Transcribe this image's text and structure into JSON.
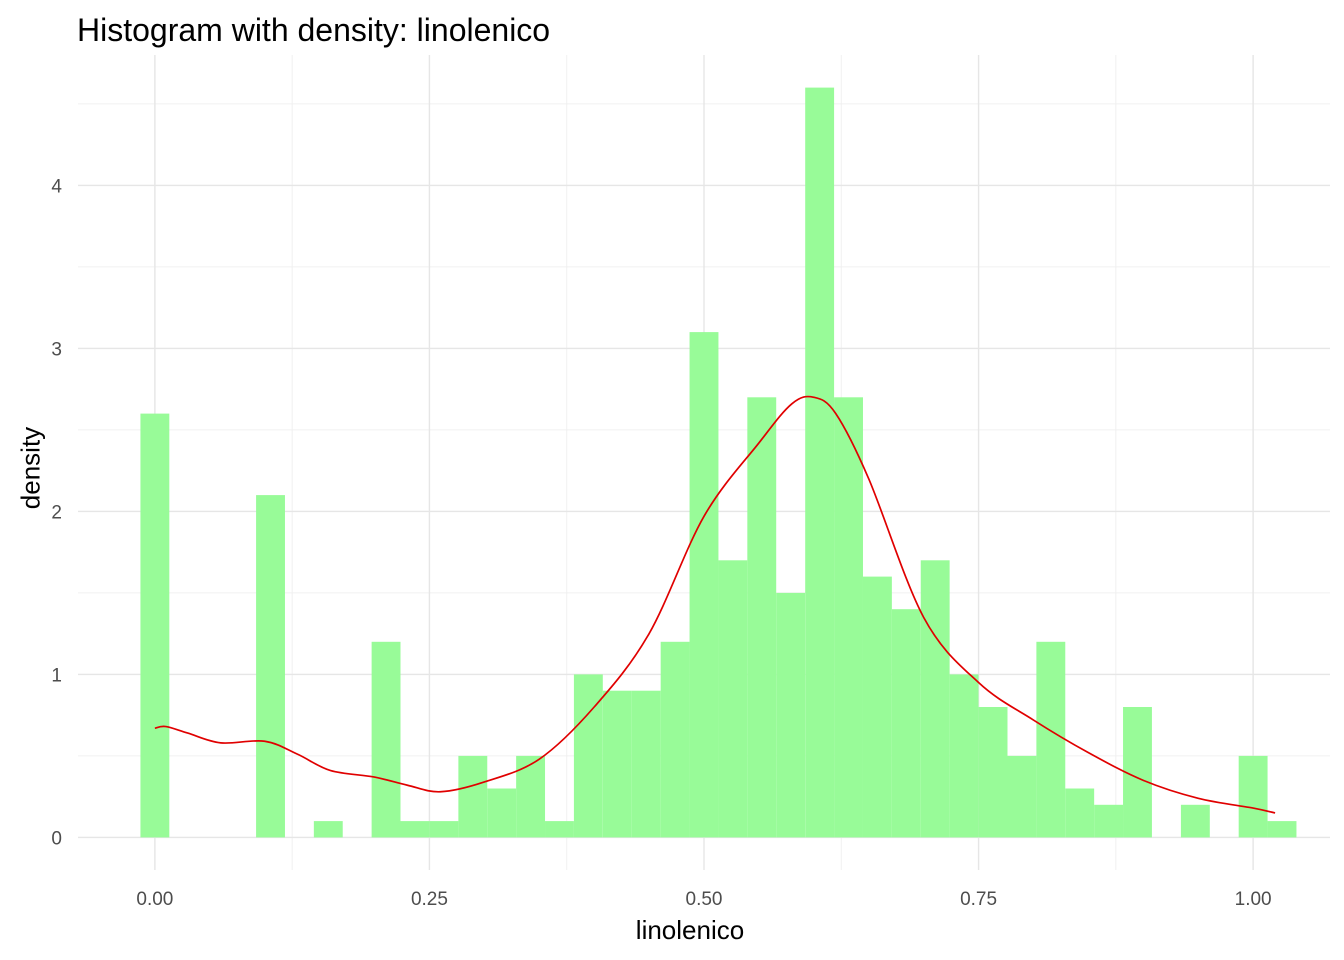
{
  "chart_data": {
    "type": "bar",
    "title": "Histogram with density: linolenico",
    "xlabel": "linolenico",
    "ylabel": "density",
    "xlim": [
      -0.07,
      1.07
    ],
    "ylim": [
      -0.2,
      4.8
    ],
    "x_ticks": [
      0.0,
      0.25,
      0.5,
      0.75,
      1.0
    ],
    "x_tick_labels": [
      "0.00",
      "0.25",
      "0.50",
      "0.75",
      "1.00"
    ],
    "y_ticks": [
      0,
      1,
      2,
      3,
      4
    ],
    "y_tick_labels": [
      "0",
      "1",
      "2",
      "3",
      "4"
    ],
    "grid": true,
    "bin_width": 0.0263,
    "bins": {
      "x": [
        0.0,
        0.0263,
        0.0526,
        0.0789,
        0.1053,
        0.1316,
        0.1579,
        0.1842,
        0.2105,
        0.2368,
        0.2632,
        0.2895,
        0.3158,
        0.3421,
        0.3684,
        0.3947,
        0.4211,
        0.4474,
        0.4737,
        0.5,
        0.5263,
        0.5526,
        0.5789,
        0.6053,
        0.6316,
        0.6579,
        0.6842,
        0.7105,
        0.7368,
        0.7632,
        0.7895,
        0.8158,
        0.8421,
        0.8684,
        0.8947,
        0.9211,
        0.9474,
        0.9737,
        1.0,
        1.0263
      ],
      "density": [
        2.6,
        0,
        0,
        0,
        2.1,
        0,
        0.1,
        0,
        1.2,
        0.1,
        0.1,
        0.5,
        0.3,
        0.5,
        0.1,
        1.0,
        0.9,
        0.9,
        1.2,
        3.1,
        1.7,
        2.7,
        1.5,
        4.6,
        2.7,
        1.6,
        1.4,
        1.7,
        1.0,
        0.8,
        0.5,
        1.2,
        0.3,
        0.2,
        0.8,
        0,
        0.2,
        0,
        0.5,
        0.1
      ]
    },
    "bar_color": "#98fb98",
    "density_curve": {
      "color": "#e00000",
      "x": [
        0.0,
        0.01,
        0.03,
        0.06,
        0.1,
        0.13,
        0.16,
        0.2,
        0.23,
        0.26,
        0.3,
        0.35,
        0.4,
        0.45,
        0.5,
        0.55,
        0.58,
        0.6,
        0.62,
        0.65,
        0.7,
        0.75,
        0.8,
        0.85,
        0.9,
        0.95,
        1.0,
        1.02
      ],
      "y": [
        0.67,
        0.68,
        0.64,
        0.58,
        0.59,
        0.51,
        0.41,
        0.37,
        0.32,
        0.28,
        0.34,
        0.48,
        0.8,
        1.25,
        1.97,
        2.42,
        2.66,
        2.7,
        2.6,
        2.2,
        1.35,
        0.95,
        0.72,
        0.52,
        0.35,
        0.24,
        0.18,
        0.15
      ]
    }
  }
}
